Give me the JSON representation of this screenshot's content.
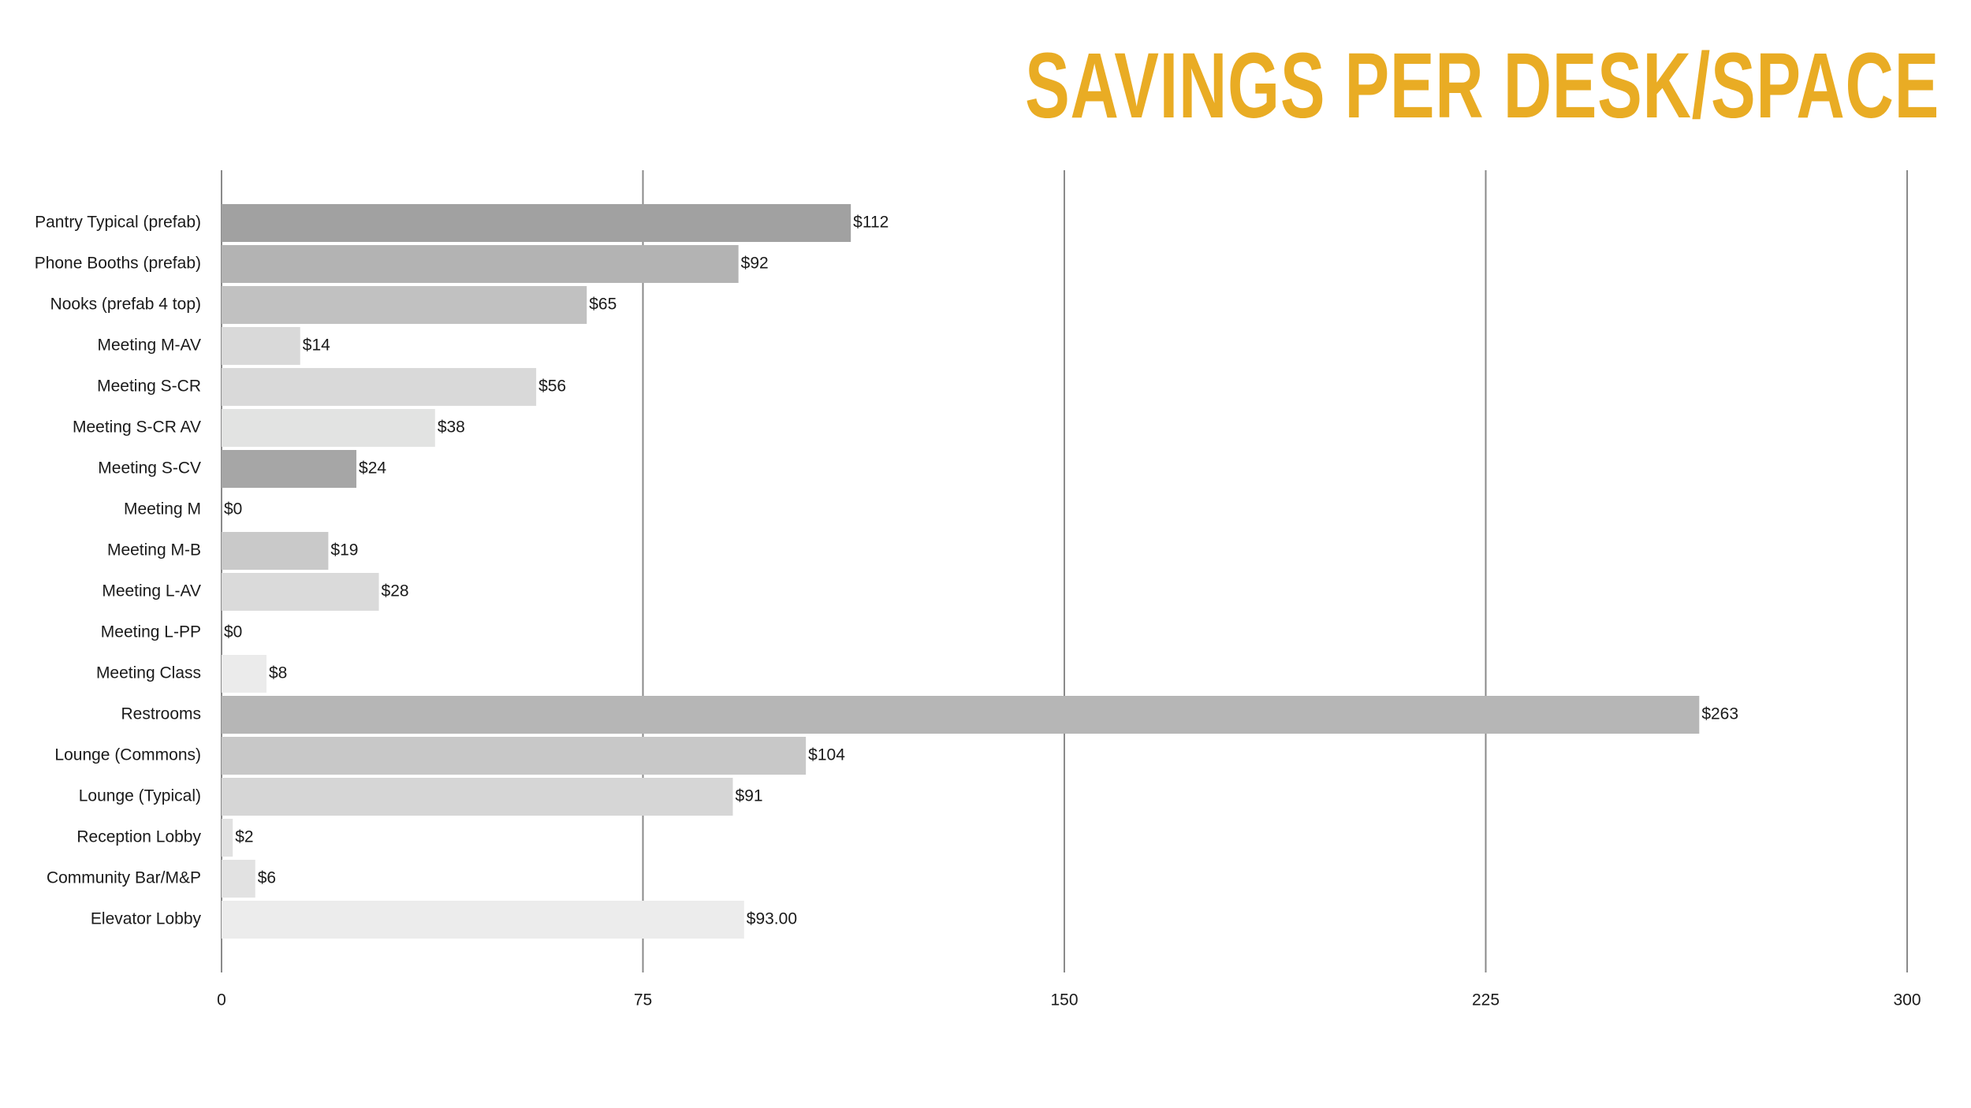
{
  "title": "SAVINGS PER DESK/SPACE",
  "colors": {
    "title": "#E9AC24",
    "gridline": "#8a8a8a",
    "axis": "#8a8a8a"
  },
  "chart_data": {
    "type": "bar",
    "orientation": "horizontal",
    "title": "SAVINGS PER DESK/SPACE",
    "xlabel": "",
    "ylabel": "",
    "xlim": [
      0,
      300
    ],
    "xticks": [
      0,
      75,
      150,
      225,
      300
    ],
    "grid": true,
    "legend": "none",
    "categories": [
      "Pantry Typical (prefab)",
      "Phone Booths (prefab)",
      "Nooks (prefab 4 top)",
      "Meeting M-AV",
      "Meeting S-CR",
      "Meeting S-CR AV",
      "Meeting S-CV",
      "Meeting M",
      "Meeting M-B",
      "Meeting L-AV",
      "Meeting L-PP",
      "Meeting Class",
      "Restrooms",
      "Lounge (Commons)",
      "Lounge (Typical)",
      "Reception Lobby",
      "Community Bar/M&P",
      "Elevator Lobby"
    ],
    "values": [
      112,
      92,
      65,
      14,
      56,
      38,
      24,
      0,
      19,
      28,
      0,
      8,
      263,
      104,
      91,
      2,
      6,
      93
    ],
    "value_labels": [
      "$112",
      "$92",
      "$65",
      "$14",
      "$56",
      "$38",
      "$24",
      "$0",
      "$19",
      "$28",
      "$0",
      "$8",
      "$263",
      "$104",
      "$91",
      "$2",
      "$6",
      "$93.00"
    ],
    "bar_colors": [
      "#a1a1a1",
      "#b3b3b3",
      "#c1c1c1",
      "#d9d9d9",
      "#d9d9d9",
      "#e2e3e2",
      "#a6a6a6",
      "#bdbdbd",
      "#c9c9c9",
      "#dadada",
      "#e5e5e5",
      "#ebebeb",
      "#b6b6b6",
      "#c8c8c8",
      "#d6d6d6",
      "#e1e1e1",
      "#e2e2e2",
      "#ececec"
    ]
  }
}
